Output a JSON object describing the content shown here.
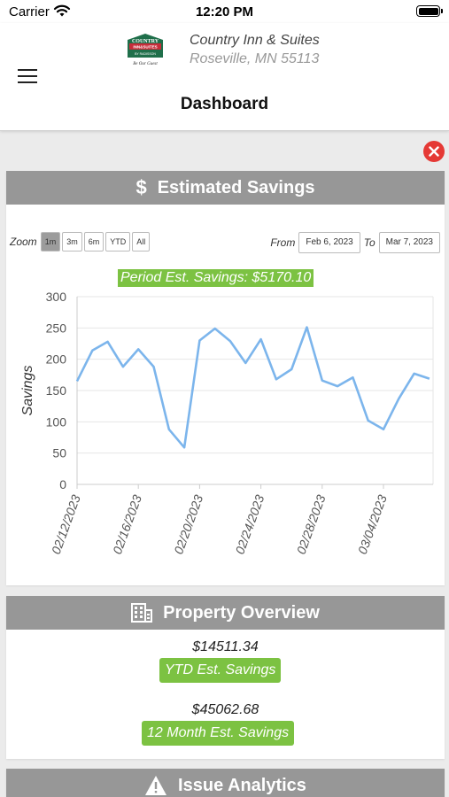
{
  "status_bar": {
    "carrier": "Carrier",
    "time": "12:20 PM"
  },
  "header": {
    "logo_text": "COUNTRY INN & SUITES",
    "hotel_name": "Country Inn & Suites",
    "hotel_location": "Roseville, MN 55113",
    "page_title": "Dashboard"
  },
  "savings": {
    "title": "Estimated Savings",
    "glyph": "$",
    "zoom_label": "Zoom",
    "zoom_options": [
      "1m",
      "3m",
      "6m",
      "YTD",
      "All"
    ],
    "active_zoom": "1m",
    "from_label": "From",
    "from_date": "Feb 6, 2023",
    "to_label": "To",
    "to_date": "Mar 7, 2023",
    "period_label": "Period Est. Savings: $5170.10"
  },
  "chart_data": {
    "type": "line",
    "ylabel": "Savings",
    "ylim": [
      0,
      300
    ],
    "yticks": [
      0,
      50,
      100,
      150,
      200,
      250,
      300
    ],
    "xticks": [
      "02/12/2023",
      "02/16/2023",
      "02/20/2023",
      "02/24/2023",
      "02/28/2023",
      "03/04/2023"
    ],
    "color": "#7cb5ec",
    "x": [
      "02/12/2023",
      "02/13/2023",
      "02/14/2023",
      "02/15/2023",
      "02/16/2023",
      "02/17/2023",
      "02/18/2023",
      "02/19/2023",
      "02/20/2023",
      "02/21/2023",
      "02/22/2023",
      "02/23/2023",
      "02/24/2023",
      "02/25/2023",
      "02/26/2023",
      "02/27/2023",
      "02/28/2023",
      "03/01/2023",
      "03/02/2023",
      "03/03/2023",
      "03/04/2023",
      "03/05/2023",
      "03/06/2023",
      "03/07/2023"
    ],
    "values": [
      165,
      214,
      228,
      188,
      216,
      188,
      88,
      59,
      230,
      249,
      229,
      194,
      232,
      168,
      184,
      251,
      166,
      157,
      171,
      102,
      88,
      137,
      177,
      169
    ]
  },
  "overview": {
    "title": "Property Overview",
    "ytd_value": "$14511.34",
    "ytd_label": "YTD Est. Savings",
    "month_value": "$45062.68",
    "month_label": "12 Month Est. Savings"
  },
  "analytics": {
    "title": "Issue Analytics"
  }
}
